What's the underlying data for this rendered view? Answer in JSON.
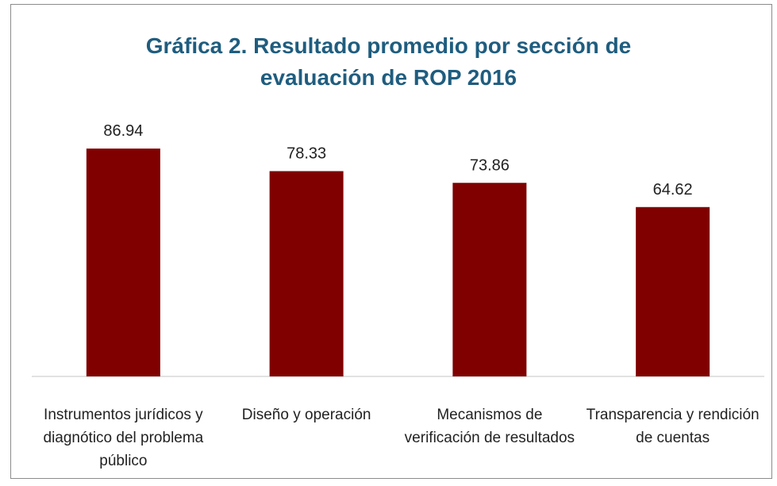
{
  "chart_data": {
    "type": "bar",
    "title": "Gráfica 2. Resultado promedio por sección de evaluación de ROP 2016",
    "categories": [
      "Instrumentos jurídicos y diagnótico del problema público",
      "Diseño y operación",
      "Mecanismos de verificación de resultados",
      "Transparencia y rendición de cuentas"
    ],
    "values": [
      86.94,
      78.33,
      73.86,
      64.62
    ],
    "color": "#800000"
  }
}
